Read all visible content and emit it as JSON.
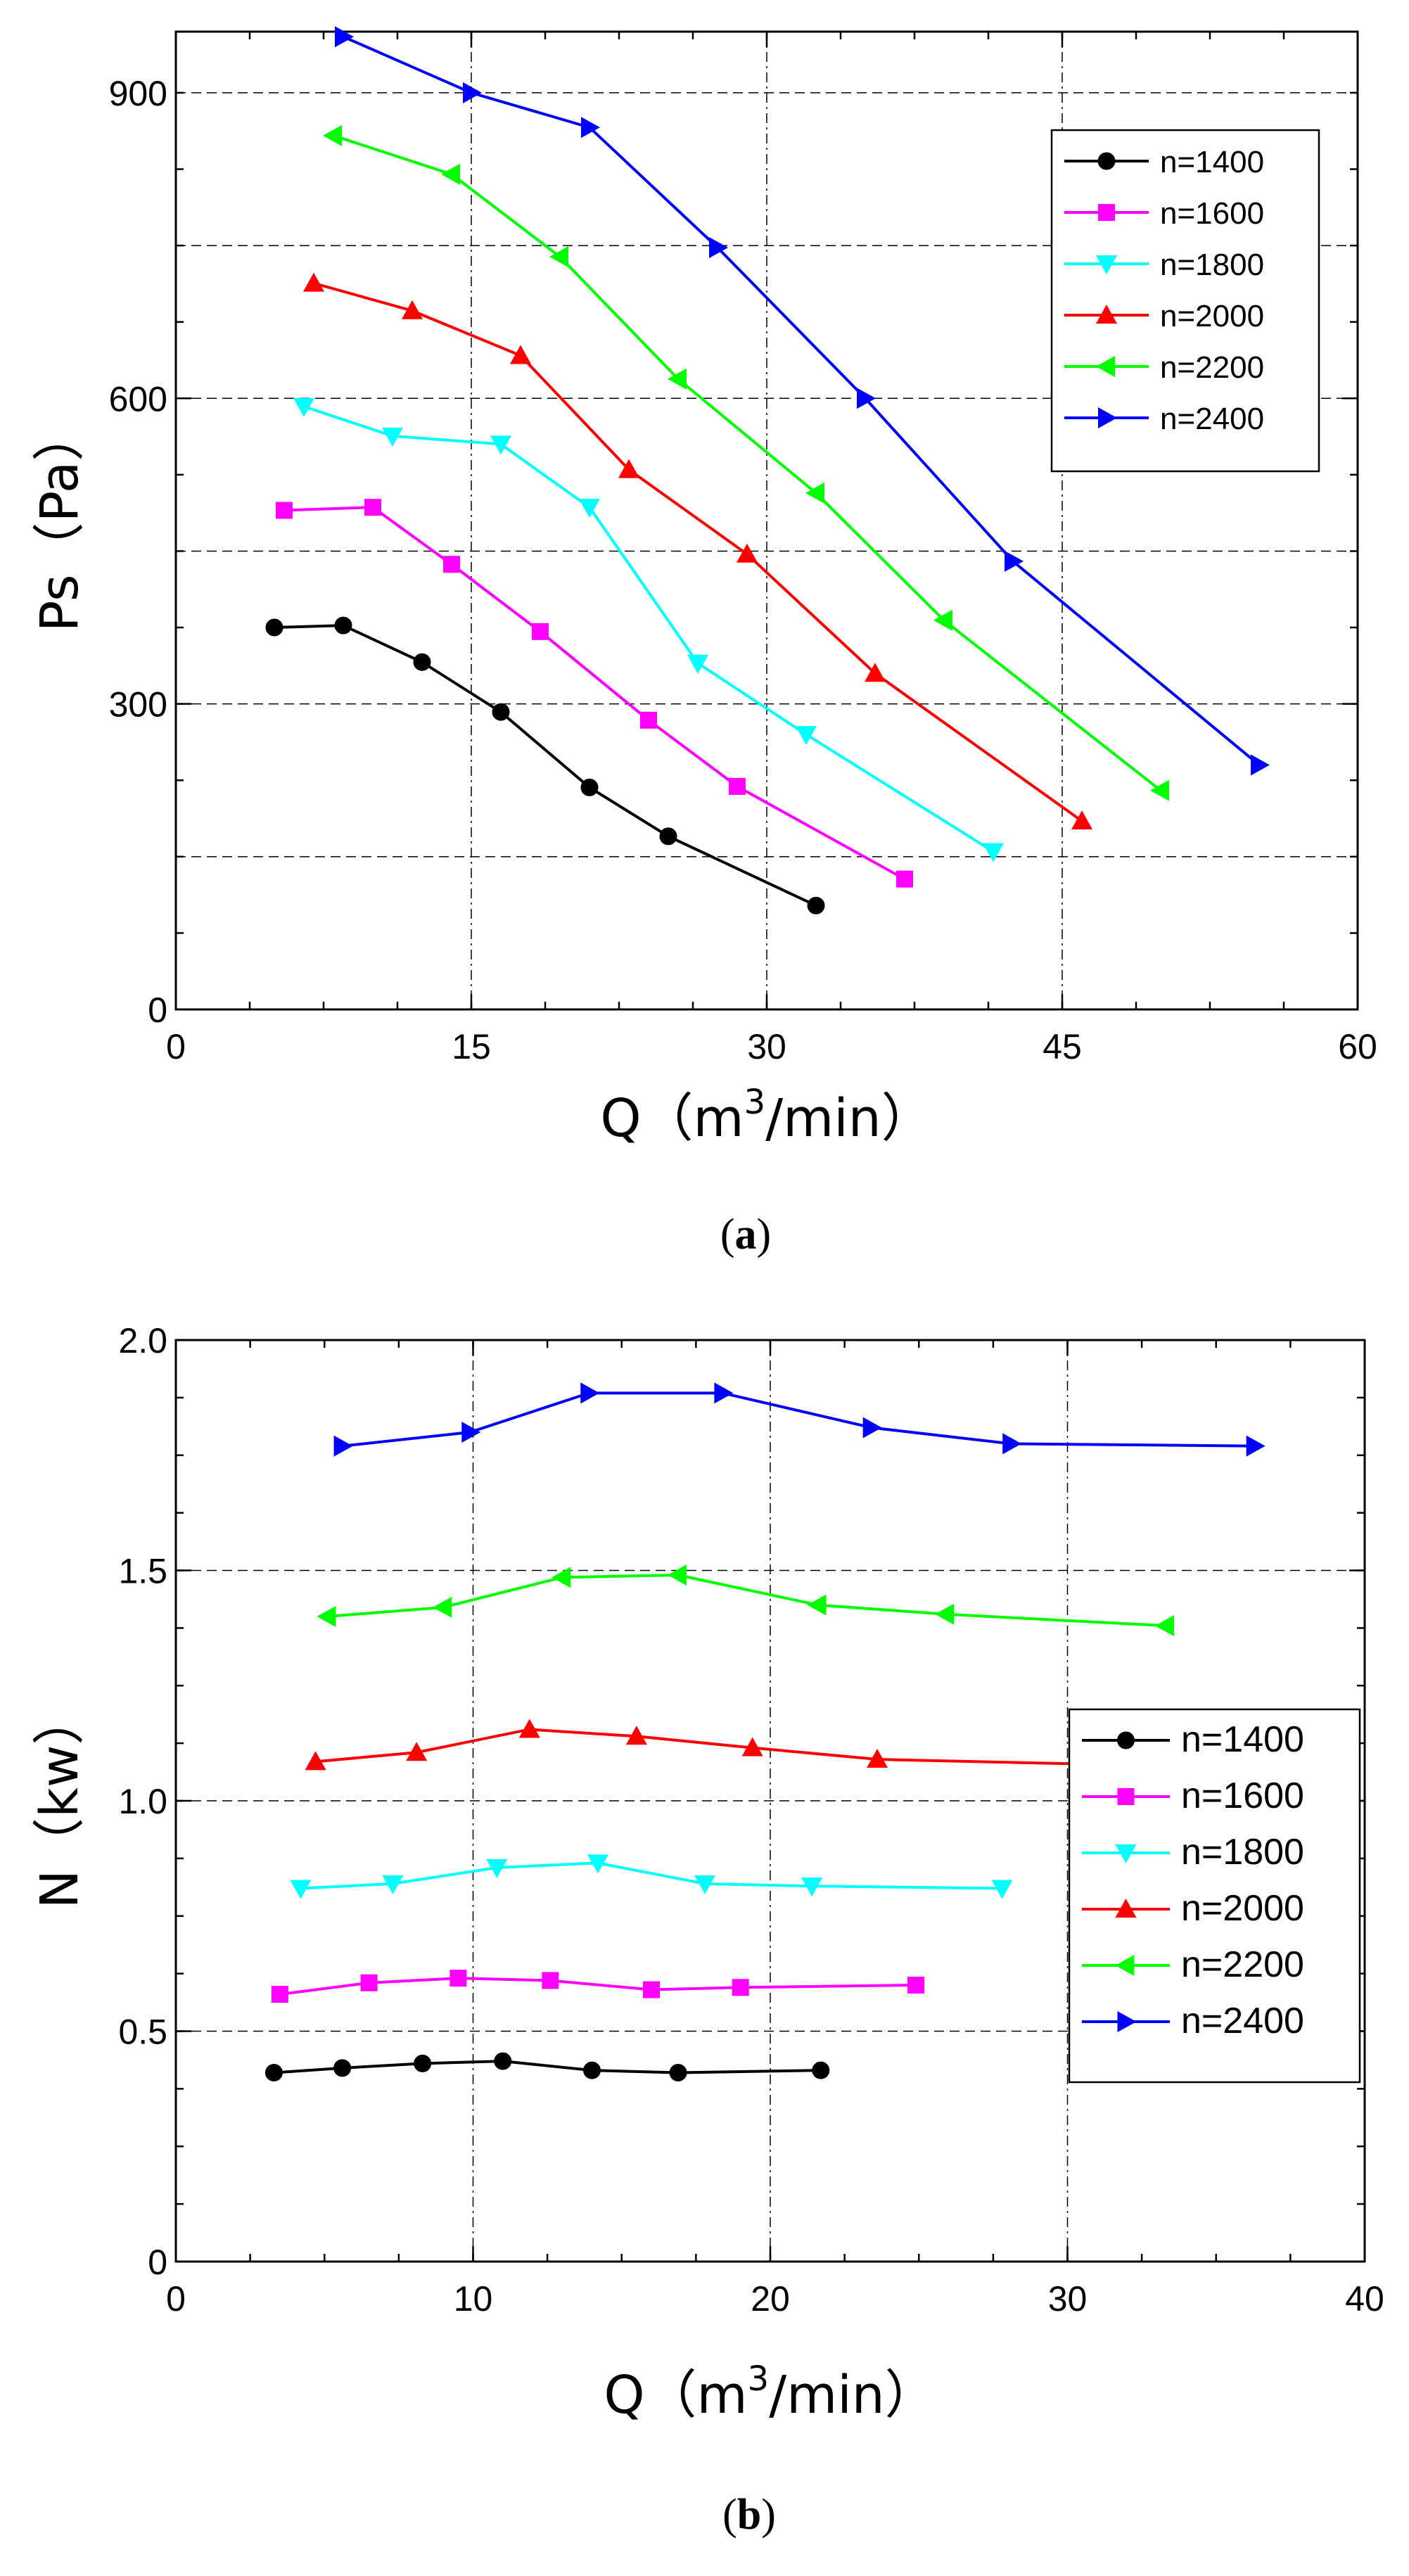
{
  "chart_data": [
    {
      "type": "line",
      "caption_open": "(",
      "caption_letter": "a",
      "caption_close": ")",
      "xlabel": "Q（m",
      "xlabel_sup": "3",
      "xlabel_tail": "/min）",
      "ylabel": "Ps（Pa）",
      "xlim": [
        0,
        60
      ],
      "ylim": [
        0,
        960
      ],
      "xticks": [
        0,
        15,
        30,
        45,
        60
      ],
      "yticks": [
        0,
        300,
        600,
        900
      ],
      "ygrid_extra": [
        150,
        450,
        750
      ],
      "grid": true,
      "legend_position": "top-right",
      "series": [
        {
          "name": "n=1400",
          "color": "#000000",
          "marker": "circle",
          "x": [
            5.0,
            8.5,
            12.5,
            16.5,
            21.0,
            25.0,
            32.5
          ],
          "y": [
            375,
            377,
            341,
            292,
            218,
            170,
            102
          ]
        },
        {
          "name": "n=1600",
          "color": "#ff00ff",
          "marker": "square",
          "x": [
            5.5,
            10.0,
            14.0,
            18.5,
            24.0,
            28.5,
            37.0
          ],
          "y": [
            490,
            493,
            437,
            371,
            284,
            219,
            128
          ]
        },
        {
          "name": "n=1800",
          "color": "#00ffff",
          "marker": "triangle-down",
          "x": [
            6.5,
            11.0,
            16.5,
            21.0,
            26.5,
            32.0,
            41.5
          ],
          "y": [
            592,
            563,
            555,
            493,
            340,
            270,
            155
          ]
        },
        {
          "name": "n=2000",
          "color": "#ff0000",
          "marker": "triangle-up",
          "x": [
            7.0,
            12.0,
            17.5,
            23.0,
            29.0,
            35.5,
            46.0
          ],
          "y": [
            713,
            686,
            642,
            530,
            447,
            330,
            185
          ]
        },
        {
          "name": "n=2200",
          "color": "#00ff00",
          "marker": "triangle-left",
          "x": [
            8.0,
            14.0,
            19.5,
            25.5,
            32.5,
            39.0,
            50.0
          ],
          "y": [
            858,
            820,
            739,
            619,
            507,
            382,
            215
          ]
        },
        {
          "name": "n=2400",
          "color": "#0000ff",
          "marker": "triangle-right",
          "x": [
            8.5,
            15.0,
            21.0,
            27.5,
            35.0,
            42.5,
            55.0
          ],
          "y": [
            955,
            900,
            866,
            748,
            600,
            440,
            240
          ]
        }
      ]
    },
    {
      "type": "line",
      "caption_open": "(",
      "caption_letter": "b",
      "caption_close": ")",
      "xlabel": "Q（m",
      "xlabel_sup": "3",
      "xlabel_tail": "/min）",
      "ylabel": "N（kw）",
      "xlim": [
        0,
        40
      ],
      "ylim": [
        0,
        2.0
      ],
      "xticks": [
        0,
        10,
        20,
        30,
        40
      ],
      "yticks": [
        0,
        0.5,
        1.0,
        1.5,
        2.0
      ],
      "ytick_labels": [
        "0",
        "0.5",
        "1.0",
        "1.5",
        "2.0"
      ],
      "grid": true,
      "legend_position": "center-right",
      "series": [
        {
          "name": "n=1400",
          "color": "#000000",
          "marker": "circle",
          "x": [
            3.3,
            5.6,
            8.3,
            11.0,
            14.0,
            16.9,
            21.7
          ],
          "y": [
            0.41,
            0.42,
            0.43,
            0.435,
            0.415,
            0.41,
            0.415
          ]
        },
        {
          "name": "n=1600",
          "color": "#ff00ff",
          "marker": "square",
          "x": [
            3.5,
            6.5,
            9.5,
            12.6,
            16.0,
            19.0,
            24.9
          ],
          "y": [
            0.58,
            0.605,
            0.615,
            0.61,
            0.59,
            0.595,
            0.6
          ]
        },
        {
          "name": "n=1800",
          "color": "#00ffff",
          "marker": "triangle-down",
          "x": [
            4.2,
            7.3,
            10.8,
            14.2,
            17.8,
            21.4,
            27.8
          ],
          "y": [
            0.81,
            0.82,
            0.855,
            0.865,
            0.82,
            0.815,
            0.81
          ]
        },
        {
          "name": "n=2000",
          "color": "#ff0000",
          "marker": "triangle-up",
          "x": [
            4.7,
            8.1,
            11.9,
            15.5,
            19.4,
            23.6,
            30.4
          ],
          "y": [
            1.085,
            1.105,
            1.155,
            1.14,
            1.115,
            1.09,
            1.08
          ]
        },
        {
          "name": "n=2200",
          "color": "#00ff00",
          "marker": "triangle-left",
          "x": [
            5.1,
            9.0,
            13.0,
            16.9,
            21.6,
            25.9,
            33.3
          ],
          "y": [
            1.4,
            1.42,
            1.485,
            1.49,
            1.425,
            1.405,
            1.38
          ]
        },
        {
          "name": "n=2400",
          "color": "#0000ff",
          "marker": "triangle-right",
          "x": [
            5.6,
            9.9,
            13.9,
            18.4,
            23.4,
            28.1,
            36.3
          ],
          "y": [
            1.77,
            1.8,
            1.885,
            1.885,
            1.81,
            1.775,
            1.77
          ]
        }
      ]
    }
  ]
}
